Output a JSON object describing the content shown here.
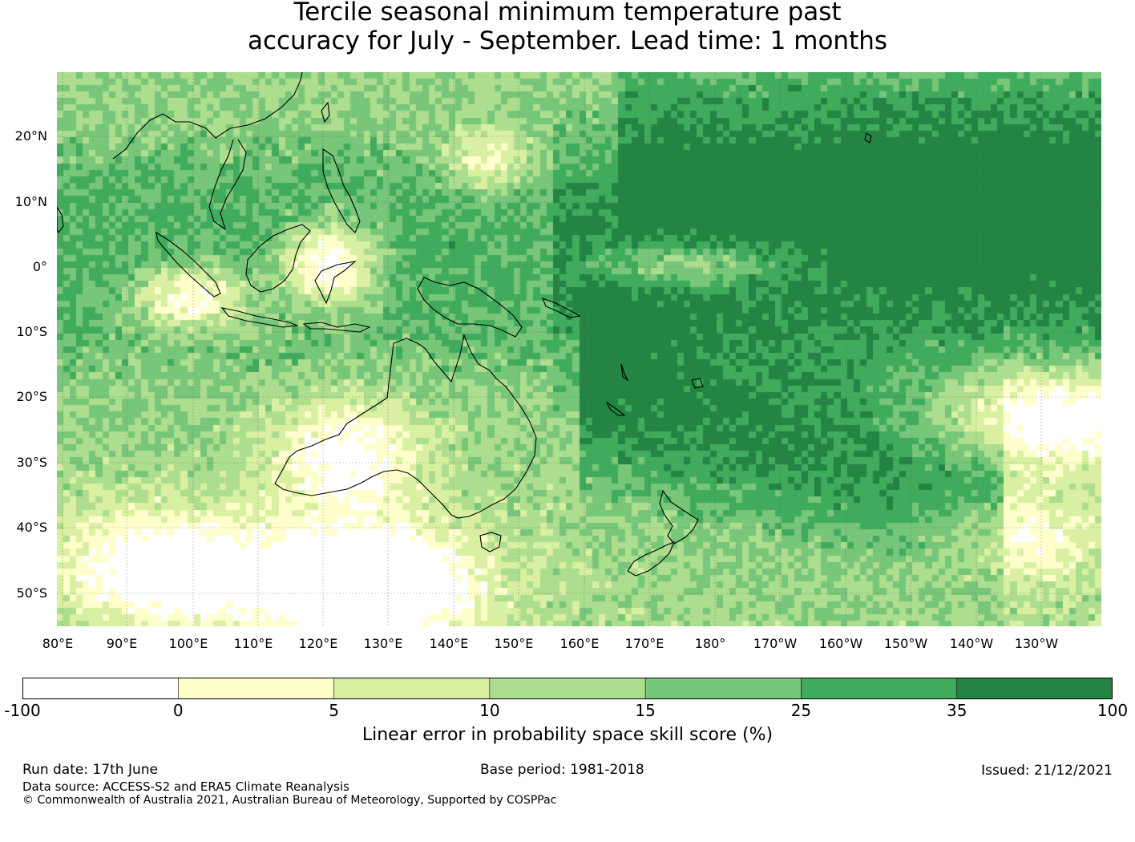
{
  "title_line1": "Tercile seasonal minimum temperature past",
  "title_line2": "accuracy for July - September. Lead time: 1 months",
  "lat_labels": [
    "20°N",
    "10°N",
    "0°",
    "10°S",
    "20°S",
    "30°S",
    "40°S",
    "50°S"
  ],
  "lon_labels": [
    "80°E",
    "90°E",
    "100°E",
    "110°E",
    "120°E",
    "130°E",
    "140°E",
    "150°E",
    "160°E",
    "170°E",
    "180°",
    "170°W",
    "160°W",
    "150°W",
    "140°W",
    "130°W"
  ],
  "colorbar": {
    "label": "Linear error in probability space skill score (%)",
    "ticks": [
      "-100",
      "0",
      "5",
      "10",
      "15",
      "25",
      "35",
      "100"
    ],
    "colors": [
      "#ffffff",
      "#ffffcc",
      "#d9f0a3",
      "#addd8e",
      "#78c679",
      "#41ab5d",
      "#238443"
    ]
  },
  "footer": {
    "run_date": "Run date: 17th June",
    "base_period": "Base period: 1981-2018",
    "issued": "Issued: 21/12/2021",
    "data_source": "Data source: ACCESS-S2 and ERA5 Climate Reanalysis",
    "copyright": "© Commonwealth of Australia 2021, Australian Bureau of Meteorology, Supported by COSPPac"
  }
}
